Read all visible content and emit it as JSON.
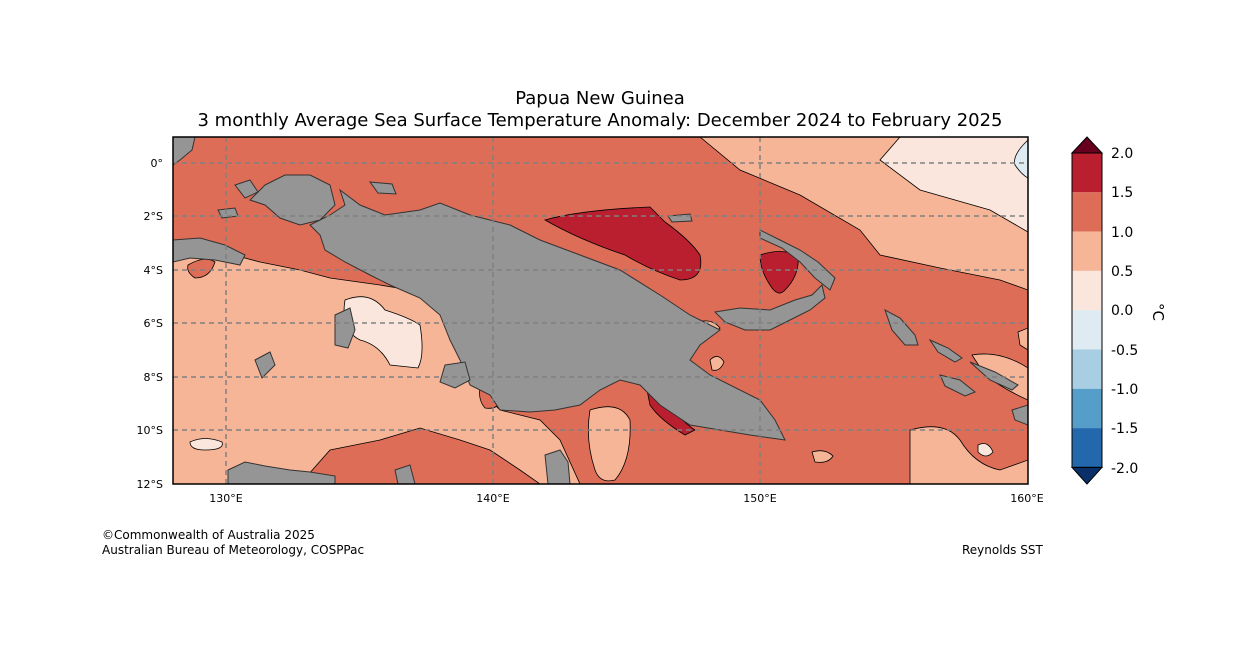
{
  "title": "Papua New Guinea",
  "subtitle": "3 monthly Average Sea Surface Temperature Anomaly: December 2024 to February 2025",
  "copyright": "©Commonwealth of Australia 2025",
  "credit": "Australian Bureau of Meteorology, COSPPac",
  "source": "Reynolds SST",
  "map": {
    "lat_labels": [
      "0°",
      "2°S",
      "4°S",
      "6°S",
      "8°S",
      "10°S",
      "12°S"
    ],
    "lon_labels": [
      "130°E",
      "140°E",
      "150°E",
      "160°E"
    ],
    "extent": {
      "lon": [
        128,
        160
      ],
      "lat": [
        1,
        -12
      ]
    },
    "land_color": "#959595",
    "grid_color": "#808080"
  },
  "colorbar": {
    "unit": "°C",
    "labels": [
      "2.0",
      "1.5",
      "1.0",
      "0.5",
      "0.0",
      "-0.5",
      "-1.0",
      "-1.5",
      "-2.0"
    ],
    "colors": [
      "#67001f",
      "#b91f2e",
      "#dd6d57",
      "#f6b597",
      "#fae6dc",
      "#dfebf2",
      "#a7cee3",
      "#559ec9",
      "#2367ac",
      "#0b3069"
    ]
  }
}
